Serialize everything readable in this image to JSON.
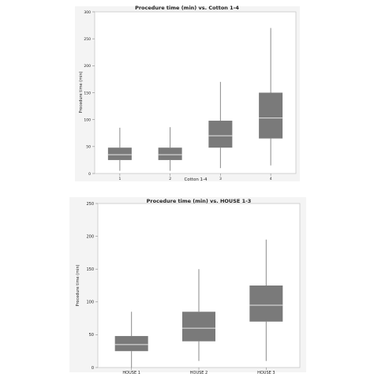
{
  "chart_data": [
    {
      "type": "box",
      "title": "Procedure time (min) vs. Cotton 1-4",
      "xlabel": "Cotton 1-4",
      "ylabel": "Procedure time (min)",
      "ylim": [
        0,
        300
      ],
      "yticks": [
        0,
        50,
        100,
        150,
        200,
        250,
        300
      ],
      "grid": false,
      "categories": [
        "1",
        "2",
        "3",
        "4"
      ],
      "boxes": [
        {
          "min": 5,
          "q1": 25,
          "median": 35,
          "q3": 48,
          "max": 85
        },
        {
          "min": 5,
          "q1": 25,
          "median": 35,
          "q3": 48,
          "max": 86
        },
        {
          "min": 10,
          "q1": 48,
          "median": 70,
          "q3": 98,
          "max": 170
        },
        {
          "min": 15,
          "q1": 65,
          "median": 103,
          "q3": 150,
          "max": 270
        }
      ],
      "colors": {
        "box": "#7a7a7a",
        "median": "#e6e6e6",
        "whisker": "#8a8a8a",
        "plot_bg": "#ffffff",
        "outer_bg": "#f4f4f4"
      }
    },
    {
      "type": "box",
      "title": "Procedure time (min) vs. HOUSE 1-3",
      "xlabel": "",
      "ylabel": "Procedure time (min)",
      "ylim": [
        0,
        250
      ],
      "yticks": [
        0,
        50,
        100,
        150,
        200,
        250
      ],
      "grid": false,
      "categories": [
        "HOUSE 1",
        "HOUSE 2",
        "HOUSE 3"
      ],
      "boxes": [
        {
          "min": 0,
          "q1": 25,
          "median": 35,
          "q3": 48,
          "max": 85
        },
        {
          "min": 10,
          "q1": 40,
          "median": 60,
          "q3": 85,
          "max": 150
        },
        {
          "min": 10,
          "q1": 70,
          "median": 95,
          "q3": 125,
          "max": 195
        }
      ],
      "colors": {
        "box": "#7a7a7a",
        "median": "#e6e6e6",
        "whisker": "#8a8a8a",
        "plot_bg": "#ffffff",
        "outer_bg": "#f4f4f4"
      }
    }
  ]
}
